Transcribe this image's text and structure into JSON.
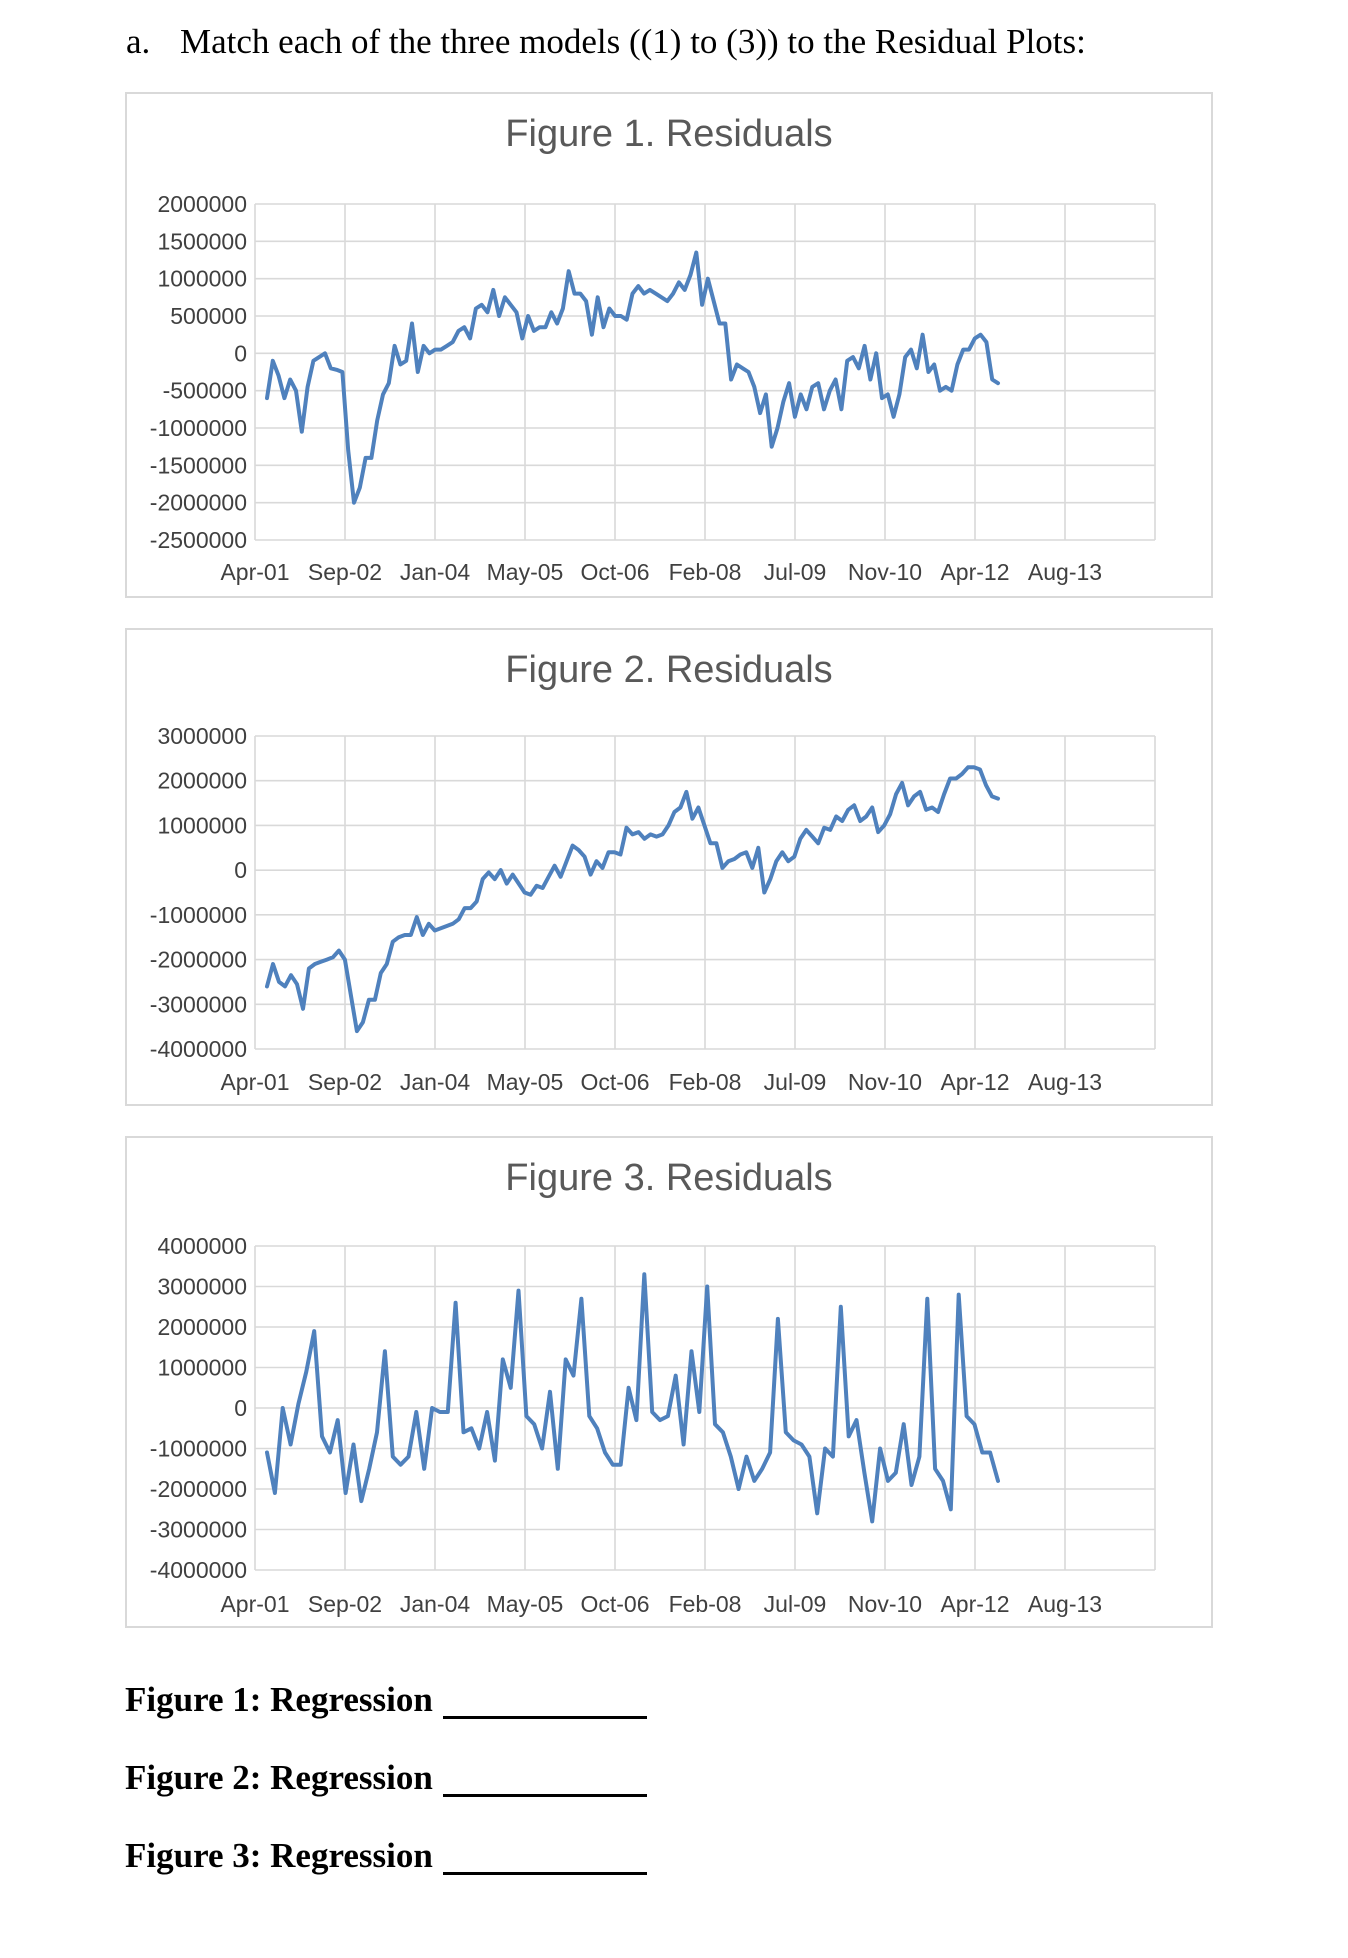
{
  "question": {
    "letter": "a.",
    "text": "Match each of the three models ((1) to (3)) to the Residual Plots:"
  },
  "chart_data": [
    {
      "type": "line",
      "title": "Figure 1. Residuals",
      "xlabel": "",
      "ylabel": "",
      "x_tick_labels": [
        "Apr-01",
        "Sep-02",
        "Jan-04",
        "May-05",
        "Oct-06",
        "Feb-08",
        "Jul-09",
        "Nov-10",
        "Apr-12",
        "Aug-13"
      ],
      "y_ticks": [
        2000000,
        1500000,
        1000000,
        500000,
        0,
        -500000,
        -1000000,
        -1500000,
        -2000000,
        -2500000
      ],
      "ylim": [
        -2500000,
        2000000
      ],
      "grid": true,
      "series": [
        {
          "name": "Residuals",
          "values": [
            -600000,
            -100000,
            -300000,
            -600000,
            -350000,
            -500000,
            -1050000,
            -450000,
            -100000,
            -50000,
            0,
            -200000,
            -220000,
            -250000,
            -1300000,
            -2000000,
            -1800000,
            -1400000,
            -1400000,
            -900000,
            -550000,
            -400000,
            100000,
            -150000,
            -100000,
            400000,
            -250000,
            100000,
            0,
            50000,
            50000,
            100000,
            150000,
            300000,
            350000,
            200000,
            600000,
            650000,
            550000,
            850000,
            500000,
            750000,
            650000,
            550000,
            200000,
            500000,
            300000,
            350000,
            350000,
            550000,
            400000,
            600000,
            1100000,
            800000,
            800000,
            700000,
            250000,
            750000,
            350000,
            600000,
            500000,
            500000,
            450000,
            800000,
            900000,
            800000,
            850000,
            800000,
            750000,
            700000,
            800000,
            950000,
            850000,
            1050000,
            1350000,
            650000,
            1000000,
            700000,
            400000,
            400000,
            -350000,
            -150000,
            -200000,
            -250000,
            -450000,
            -800000,
            -550000,
            -1250000,
            -1000000,
            -650000,
            -400000,
            -850000,
            -550000,
            -750000,
            -450000,
            -400000,
            -750000,
            -500000,
            -350000,
            -750000,
            -100000,
            -50000,
            -200000,
            100000,
            -350000,
            0,
            -600000,
            -550000,
            -850000,
            -550000,
            -50000,
            50000,
            -200000,
            250000,
            -250000,
            -150000,
            -500000,
            -450000,
            -500000,
            -150000,
            50000,
            50000,
            200000,
            250000,
            150000,
            -350000,
            -400000
          ]
        }
      ]
    },
    {
      "type": "line",
      "title": "Figure 2. Residuals",
      "xlabel": "",
      "ylabel": "",
      "x_tick_labels": [
        "Apr-01",
        "Sep-02",
        "Jan-04",
        "May-05",
        "Oct-06",
        "Feb-08",
        "Jul-09",
        "Nov-10",
        "Apr-12",
        "Aug-13"
      ],
      "y_ticks": [
        3000000,
        2000000,
        1000000,
        0,
        -1000000,
        -2000000,
        -3000000,
        -4000000
      ],
      "ylim": [
        -4000000,
        3000000
      ],
      "grid": true,
      "series": [
        {
          "name": "Residuals",
          "values": [
            -2600000,
            -2100000,
            -2500000,
            -2600000,
            -2350000,
            -2550000,
            -3100000,
            -2200000,
            -2100000,
            -2050000,
            -2000000,
            -1950000,
            -1800000,
            -2000000,
            -2800000,
            -3600000,
            -3400000,
            -2900000,
            -2900000,
            -2300000,
            -2100000,
            -1600000,
            -1500000,
            -1450000,
            -1450000,
            -1050000,
            -1450000,
            -1200000,
            -1350000,
            -1300000,
            -1250000,
            -1200000,
            -1100000,
            -850000,
            -850000,
            -700000,
            -200000,
            -50000,
            -200000,
            0,
            -300000,
            -100000,
            -300000,
            -500000,
            -550000,
            -350000,
            -400000,
            -150000,
            100000,
            -150000,
            200000,
            550000,
            450000,
            300000,
            -100000,
            200000,
            50000,
            400000,
            400000,
            350000,
            950000,
            800000,
            850000,
            700000,
            800000,
            750000,
            800000,
            1000000,
            1300000,
            1400000,
            1750000,
            1150000,
            1400000,
            1000000,
            600000,
            600000,
            50000,
            200000,
            250000,
            350000,
            400000,
            50000,
            500000,
            -500000,
            -200000,
            200000,
            400000,
            200000,
            300000,
            700000,
            900000,
            750000,
            600000,
            950000,
            900000,
            1200000,
            1100000,
            1350000,
            1450000,
            1100000,
            1200000,
            1400000,
            850000,
            1000000,
            1250000,
            1700000,
            1950000,
            1450000,
            1650000,
            1750000,
            1350000,
            1400000,
            1300000,
            1700000,
            2050000,
            2050000,
            2150000,
            2300000,
            2300000,
            2250000,
            1900000,
            1650000,
            1600000
          ]
        }
      ]
    },
    {
      "type": "line",
      "title": "Figure 3. Residuals",
      "xlabel": "",
      "ylabel": "",
      "x_tick_labels": [
        "Apr-01",
        "Sep-02",
        "Jan-04",
        "May-05",
        "Oct-06",
        "Feb-08",
        "Jul-09",
        "Nov-10",
        "Apr-12",
        "Aug-13"
      ],
      "y_ticks": [
        4000000,
        3000000,
        2000000,
        1000000,
        0,
        -1000000,
        -2000000,
        -3000000,
        -4000000
      ],
      "ylim": [
        -4000000,
        4000000
      ],
      "grid": true,
      "series": [
        {
          "name": "Residuals",
          "values": [
            -1100000,
            -2100000,
            0,
            -900000,
            100000,
            900000,
            1900000,
            -700000,
            -1100000,
            -300000,
            -2100000,
            -900000,
            -2300000,
            -1500000,
            -600000,
            1400000,
            -1200000,
            -1400000,
            -1200000,
            -100000,
            -1500000,
            0,
            -100000,
            -100000,
            2600000,
            -600000,
            -500000,
            -1000000,
            -100000,
            -1300000,
            1200000,
            500000,
            2900000,
            -200000,
            -400000,
            -1000000,
            400000,
            -1500000,
            1200000,
            800000,
            2700000,
            -200000,
            -500000,
            -1100000,
            -1400000,
            -1400000,
            500000,
            -300000,
            3300000,
            -100000,
            -300000,
            -200000,
            800000,
            -900000,
            1400000,
            -100000,
            3000000,
            -400000,
            -600000,
            -1200000,
            -2000000,
            -1200000,
            -1800000,
            -1500000,
            -1100000,
            2200000,
            -600000,
            -800000,
            -900000,
            -1200000,
            -2600000,
            -1000000,
            -1200000,
            2500000,
            -700000,
            -300000,
            -1600000,
            -2800000,
            -1000000,
            -1800000,
            -1600000,
            -400000,
            -1900000,
            -1200000,
            2700000,
            -1500000,
            -1800000,
            -2500000,
            2800000,
            -200000,
            -400000,
            -1100000,
            -1100000,
            -1800000
          ]
        }
      ]
    }
  ],
  "answers": [
    {
      "label": "Figure 1: Regression"
    },
    {
      "label": "Figure 2: Regression"
    },
    {
      "label": "Figure 3: Regression"
    }
  ]
}
